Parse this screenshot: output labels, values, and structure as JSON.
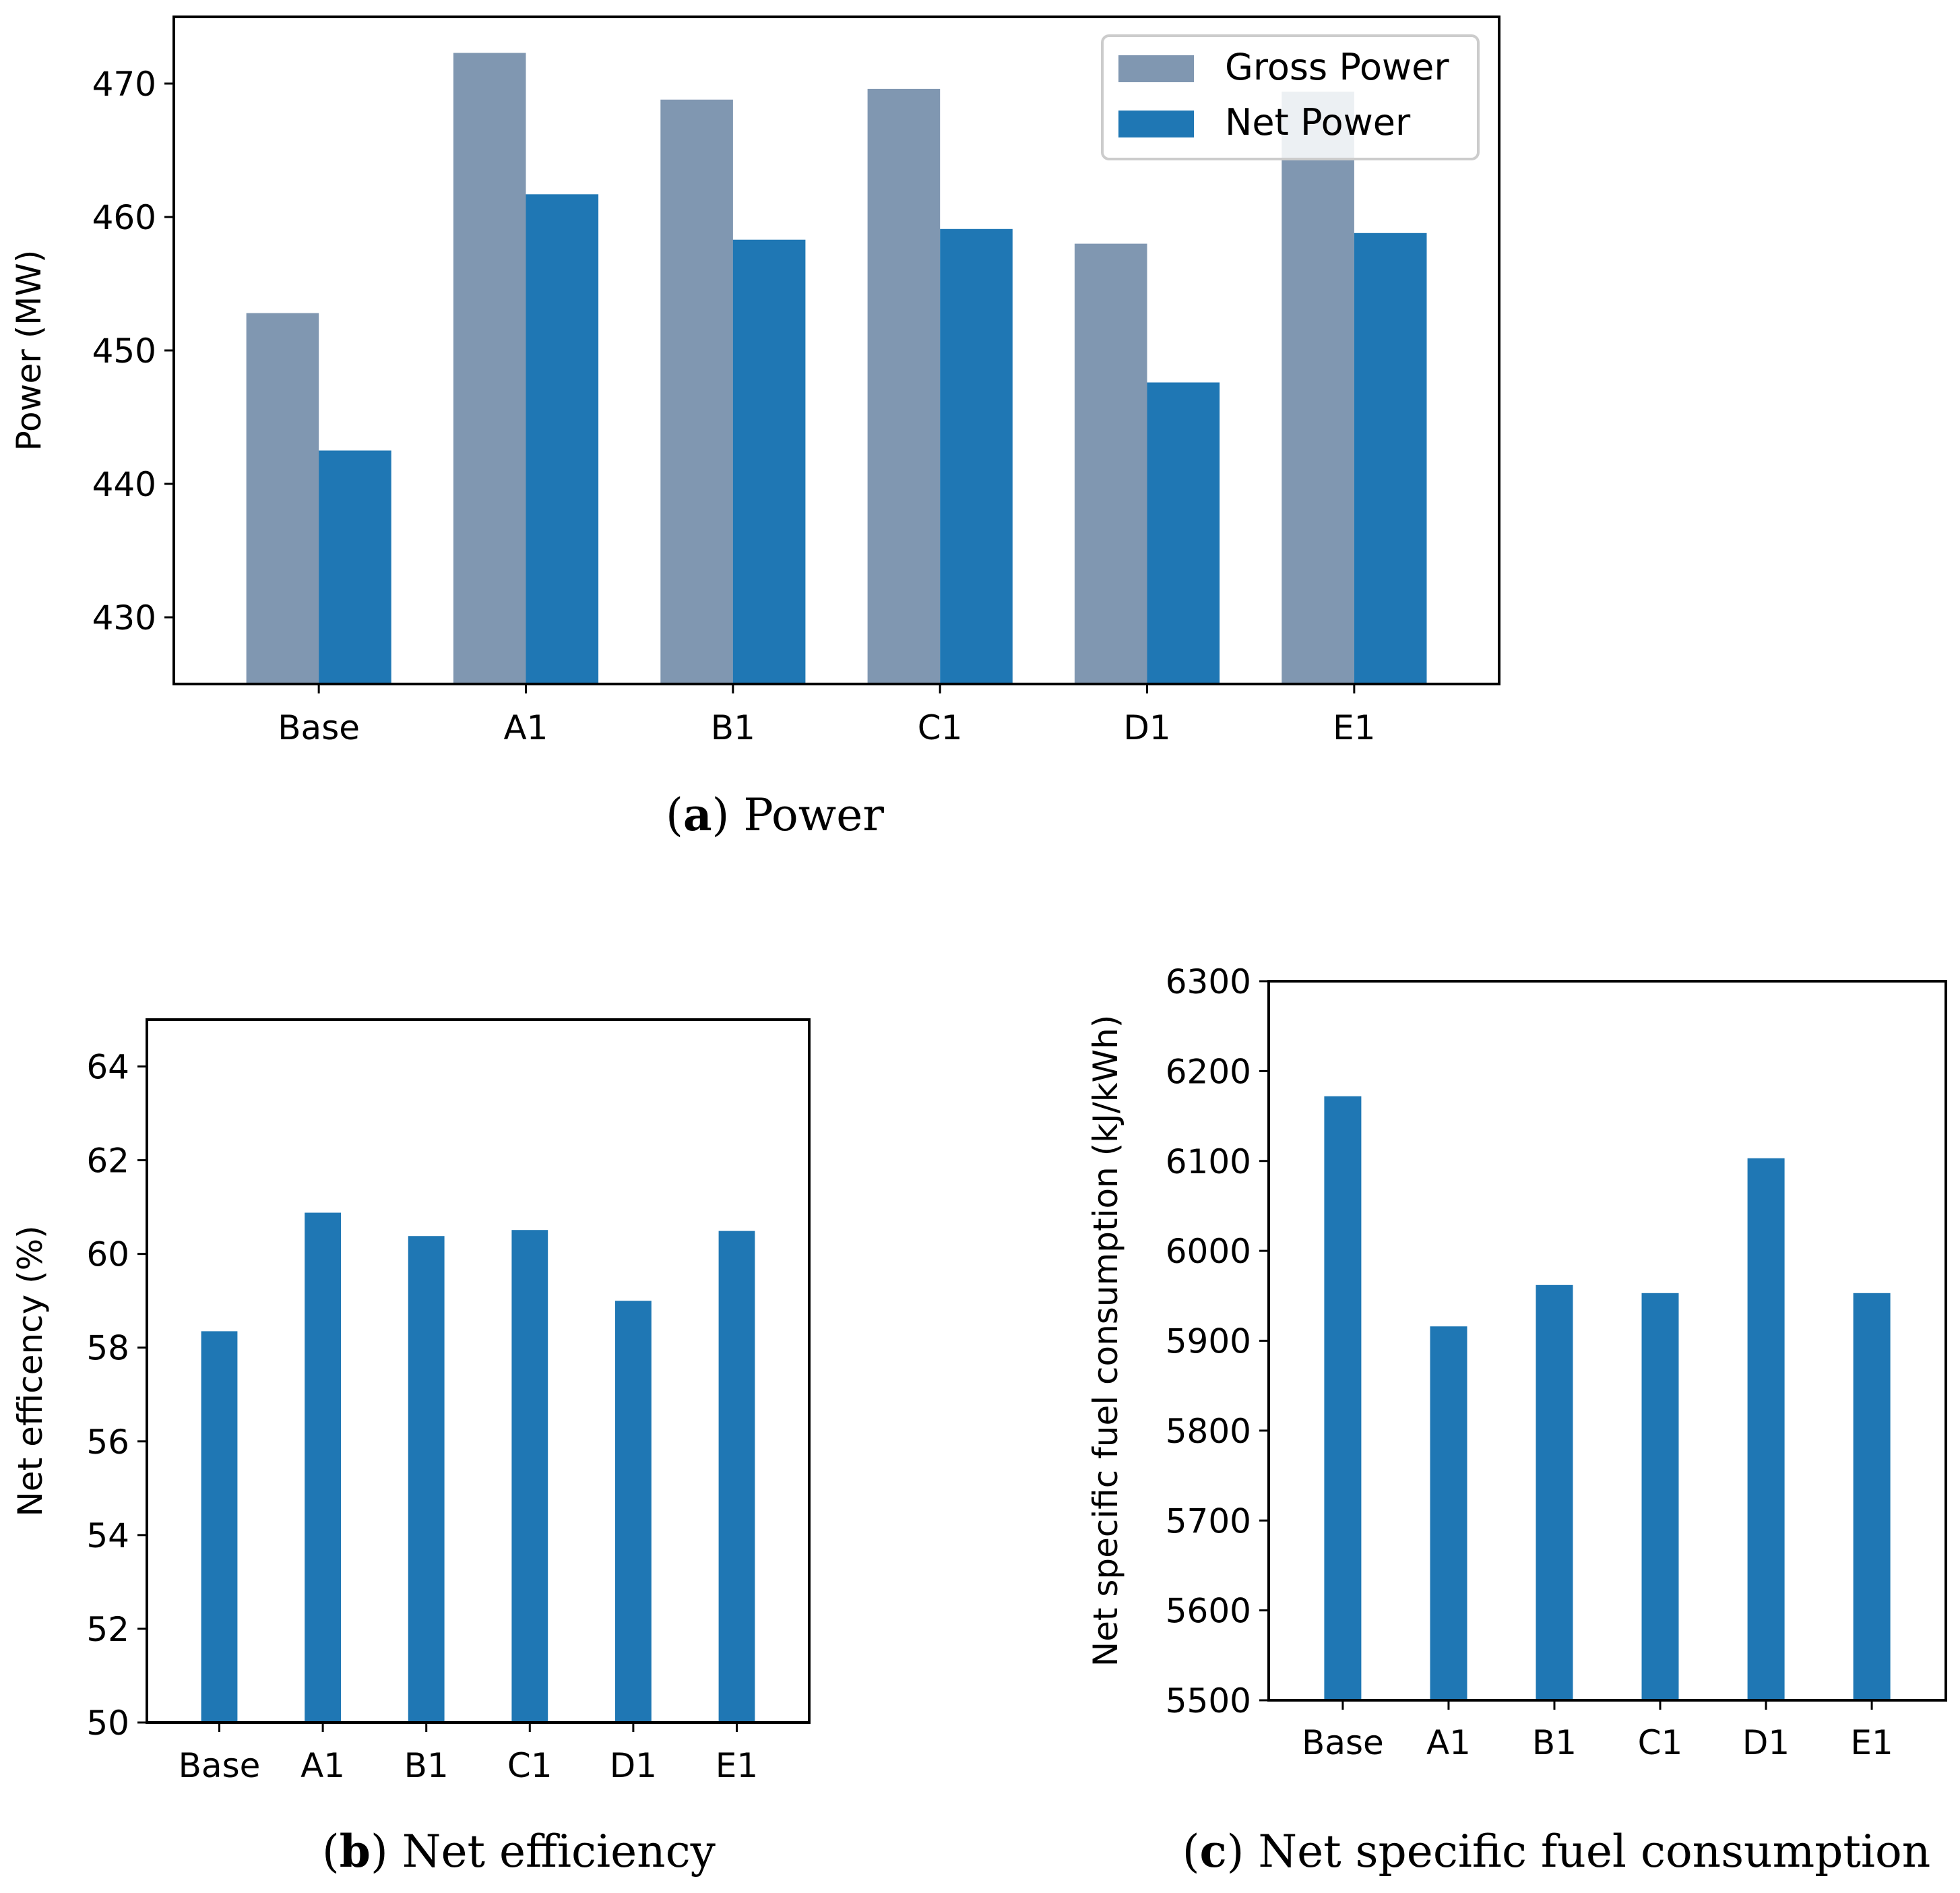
{
  "chart_data": [
    {
      "id": "a",
      "type": "bar",
      "caption_letter": "a",
      "caption_text": "Power",
      "categories": [
        "Base",
        "A1",
        "B1",
        "C1",
        "D1",
        "E1"
      ],
      "series": [
        {
          "name": "Gross Power",
          "color": "#8097b1",
          "values": [
            452.8,
            472.3,
            468.8,
            469.6,
            458.0,
            469.4
          ]
        },
        {
          "name": "Net Power",
          "color": "#1f77b4",
          "values": [
            442.5,
            461.7,
            458.3,
            459.1,
            447.6,
            458.8
          ]
        }
      ],
      "xlabel": "",
      "ylabel": "Power (MW)",
      "ylim": [
        425,
        475
      ],
      "yticks": [
        430,
        440,
        450,
        460,
        470
      ],
      "legend": "top-right"
    },
    {
      "id": "b",
      "type": "bar",
      "caption_letter": "b",
      "caption_text": "Net efficiency",
      "categories": [
        "Base",
        "A1",
        "B1",
        "C1",
        "D1",
        "E1"
      ],
      "series": [
        {
          "name": "Net efficiency",
          "color": "#1f77b4",
          "values": [
            58.35,
            60.88,
            60.38,
            60.51,
            59.0,
            60.49
          ]
        }
      ],
      "xlabel": "",
      "ylabel": "Net efficency (%)",
      "ylim": [
        50,
        65
      ],
      "yticks": [
        50,
        52,
        54,
        56,
        58,
        60,
        62,
        64
      ]
    },
    {
      "id": "c",
      "type": "bar",
      "caption_letter": "c",
      "caption_text": "Net specific fuel consumption",
      "categories": [
        "Base",
        "A1",
        "B1",
        "C1",
        "D1",
        "E1"
      ],
      "series": [
        {
          "name": "Net specific fuel consumption",
          "color": "#1f77b4",
          "values": [
            6172,
            5916,
            5962,
            5953,
            6103,
            5953
          ]
        }
      ],
      "xlabel": "",
      "ylabel": "Net specific fuel consumption (kJ/kWh)",
      "ylim": [
        5500,
        6300
      ],
      "yticks": [
        5500,
        5600,
        5700,
        5800,
        5900,
        6000,
        6100,
        6200,
        6300
      ]
    }
  ]
}
